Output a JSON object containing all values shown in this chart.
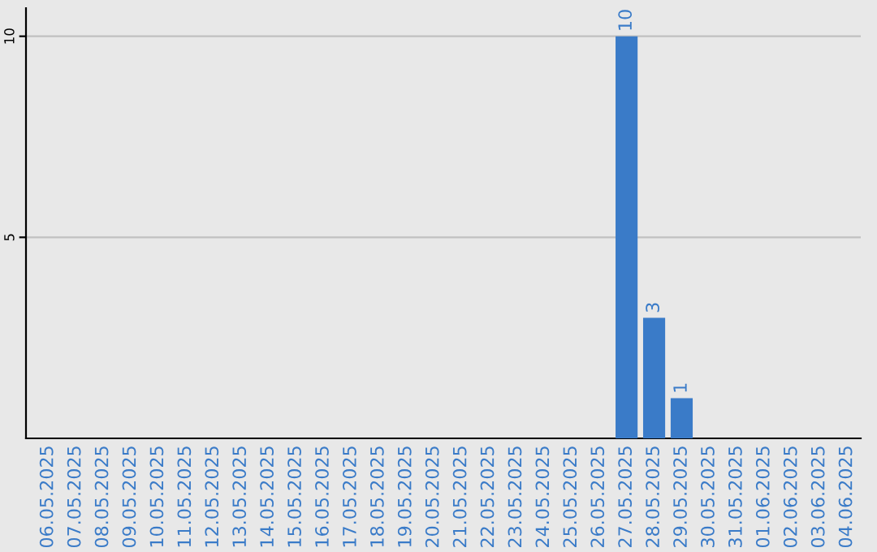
{
  "chart_data": {
    "type": "bar",
    "categories": [
      "06.05.2025",
      "07.05.2025",
      "08.05.2025",
      "09.05.2025",
      "10.05.2025",
      "11.05.2025",
      "12.05.2025",
      "13.05.2025",
      "14.05.2025",
      "15.05.2025",
      "16.05.2025",
      "17.05.2025",
      "18.05.2025",
      "19.05.2025",
      "20.05.2025",
      "21.05.2025",
      "22.05.2025",
      "23.05.2025",
      "24.05.2025",
      "25.05.2025",
      "26.05.2025",
      "27.05.2025",
      "28.05.2025",
      "29.05.2025",
      "30.05.2025",
      "31.05.2025",
      "01.06.2025",
      "02.06.2025",
      "03.06.2025",
      "04.06.2025"
    ],
    "values": [
      0,
      0,
      0,
      0,
      0,
      0,
      0,
      0,
      0,
      0,
      0,
      0,
      0,
      0,
      0,
      0,
      0,
      0,
      0,
      0,
      0,
      10,
      3,
      1,
      0,
      0,
      0,
      0,
      0,
      0
    ],
    "value_labels": [
      null,
      null,
      null,
      null,
      null,
      null,
      null,
      null,
      null,
      null,
      null,
      null,
      null,
      null,
      null,
      null,
      null,
      null,
      null,
      null,
      null,
      "10",
      "3",
      "1",
      null,
      null,
      null,
      null,
      null,
      null
    ],
    "color": "#3a7bc8",
    "ylim": [
      0,
      10.7
    ],
    "yticks": [
      5,
      10
    ],
    "grid": "y"
  }
}
